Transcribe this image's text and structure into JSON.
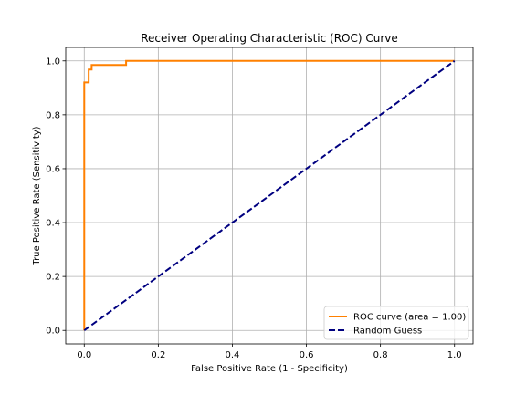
{
  "chart_data": {
    "type": "line",
    "title": "Receiver Operating Characteristic (ROC) Curve",
    "xlabel": "False Positive Rate (1 - Specificity)",
    "ylabel": "True Positive Rate (Sensitivity)",
    "xlim": [
      -0.05,
      1.05
    ],
    "ylim": [
      -0.05,
      1.05
    ],
    "xticks": [
      0.0,
      0.2,
      0.4,
      0.6,
      0.8,
      1.0
    ],
    "yticks": [
      0.0,
      0.2,
      0.4,
      0.6,
      0.8,
      1.0
    ],
    "xtick_labels": [
      "0.0",
      "0.2",
      "0.4",
      "0.6",
      "0.8",
      "1.0"
    ],
    "ytick_labels": [
      "0.0",
      "0.2",
      "0.4",
      "0.6",
      "0.8",
      "1.0"
    ],
    "grid": true,
    "legend_position": "lower right",
    "series": [
      {
        "name": "ROC curve (area = 1.00)",
        "color": "#ff8000",
        "style": "solid",
        "x": [
          0.0,
          0.0,
          0.0,
          0.012,
          0.012,
          0.02,
          0.02,
          0.113,
          0.113,
          1.0
        ],
        "y": [
          0.0,
          0.0,
          0.92,
          0.92,
          0.968,
          0.968,
          0.985,
          0.985,
          1.0,
          1.0
        ]
      },
      {
        "name": "Random Guess",
        "color": "#000080",
        "style": "dashed",
        "x": [
          0.0,
          1.0
        ],
        "y": [
          0.0,
          1.0
        ]
      }
    ]
  }
}
